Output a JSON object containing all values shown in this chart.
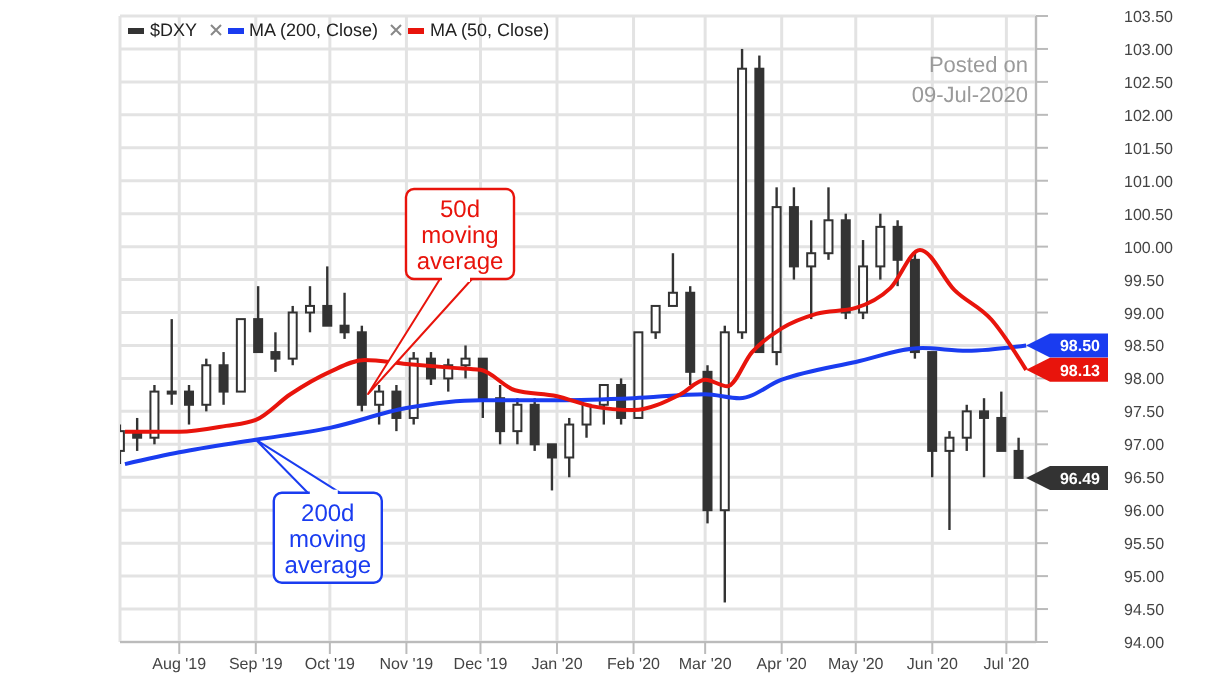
{
  "chart_data": {
    "type": "candlestick",
    "legend": "top left",
    "grid": true,
    "marker": "none",
    "line_style": "solid",
    "xlim": [
      "2019-07-08",
      "2020-07-13"
    ],
    "xticks": [
      {
        "value": "2019-08-01",
        "label": "Aug '19"
      },
      {
        "value": "2019-09-01",
        "label": "Sep '19"
      },
      {
        "value": "2019-10-01",
        "label": "Oct '19"
      },
      {
        "value": "2019-11-01",
        "label": "Nov '19"
      },
      {
        "value": "2019-12-01",
        "label": "Dec '19"
      },
      {
        "value": "2020-01-01",
        "label": "Jan '20"
      },
      {
        "value": "2020-02-01",
        "label": "Feb '20"
      },
      {
        "value": "2020-03-01",
        "label": "Mar '20"
      },
      {
        "value": "2020-04-01",
        "label": "Apr '20"
      },
      {
        "value": "2020-05-01",
        "label": "May '20"
      },
      {
        "value": "2020-06-01",
        "label": "Jun '20"
      },
      {
        "value": "2020-07-01",
        "label": "Jul '20"
      }
    ],
    "ylim": [
      94,
      103.5
    ],
    "yticks": [
      {
        "value": 94,
        "label": "94.00"
      },
      {
        "value": 94.5,
        "label": "94.50"
      },
      {
        "value": 95,
        "label": "95.00"
      },
      {
        "value": 95.5,
        "label": "95.50"
      },
      {
        "value": 96,
        "label": "96.00"
      },
      {
        "value": 96.5,
        "label": "96.50"
      },
      {
        "value": 97,
        "label": "97.00"
      },
      {
        "value": 97.5,
        "label": "97.50"
      },
      {
        "value": 98,
        "label": "98.00"
      },
      {
        "value": 98.5,
        "label": "98.50"
      },
      {
        "value": 99,
        "label": "99.00"
      },
      {
        "value": 99.5,
        "label": "99.50"
      },
      {
        "value": 100,
        "label": "100.00"
      },
      {
        "value": 100.5,
        "label": "100.50"
      },
      {
        "value": 101,
        "label": "101.00"
      },
      {
        "value": 101.5,
        "label": "101.50"
      },
      {
        "value": 102,
        "label": "102.00"
      },
      {
        "value": 102.5,
        "label": "102.50"
      },
      {
        "value": 103,
        "label": "103.00"
      },
      {
        "value": 103.5,
        "label": "103.50"
      }
    ],
    "series": [
      {
        "name": "$DXY",
        "type": "candlestick",
        "color": "#333333",
        "x": [
          "2019-07-08",
          "2019-07-15",
          "2019-07-22",
          "2019-07-29",
          "2019-08-05",
          "2019-08-12",
          "2019-08-19",
          "2019-08-26",
          "2019-09-02",
          "2019-09-09",
          "2019-09-16",
          "2019-09-23",
          "2019-09-30",
          "2019-10-07",
          "2019-10-14",
          "2019-10-21",
          "2019-10-28",
          "2019-11-04",
          "2019-11-11",
          "2019-11-18",
          "2019-11-25",
          "2019-12-02",
          "2019-12-09",
          "2019-12-16",
          "2019-12-23",
          "2019-12-30",
          "2020-01-06",
          "2020-01-13",
          "2020-01-20",
          "2020-01-27",
          "2020-02-03",
          "2020-02-10",
          "2020-02-17",
          "2020-02-24",
          "2020-03-02",
          "2020-03-09",
          "2020-03-16",
          "2020-03-23",
          "2020-03-30",
          "2020-04-06",
          "2020-04-13",
          "2020-04-20",
          "2020-04-27",
          "2020-05-04",
          "2020-05-11",
          "2020-05-18",
          "2020-05-25",
          "2020-06-01",
          "2020-06-08",
          "2020-06-15",
          "2020-06-22",
          "2020-06-29",
          "2020-07-06"
        ],
        "ohlc": [
          [
            96.9,
            97.3,
            96.7,
            97.2
          ],
          [
            97.2,
            97.4,
            96.9,
            97.1
          ],
          [
            97.1,
            97.9,
            97.0,
            97.8
          ],
          [
            97.8,
            98.9,
            97.6,
            97.8
          ],
          [
            97.8,
            97.9,
            97.3,
            97.6
          ],
          [
            97.6,
            98.3,
            97.5,
            98.2
          ],
          [
            98.2,
            98.4,
            97.6,
            97.8
          ],
          [
            97.8,
            98.9,
            97.8,
            98.9
          ],
          [
            98.9,
            99.4,
            98.4,
            98.4
          ],
          [
            98.4,
            98.7,
            98.1,
            98.3
          ],
          [
            98.3,
            99.1,
            98.2,
            99.0
          ],
          [
            99.0,
            99.4,
            98.7,
            99.1
          ],
          [
            99.1,
            99.7,
            98.8,
            98.8
          ],
          [
            98.8,
            99.3,
            98.6,
            98.7
          ],
          [
            98.7,
            98.8,
            97.5,
            97.6
          ],
          [
            97.6,
            97.9,
            97.3,
            97.8
          ],
          [
            97.8,
            97.9,
            97.2,
            97.4
          ],
          [
            97.4,
            98.4,
            97.3,
            98.3
          ],
          [
            98.3,
            98.4,
            97.9,
            98.0
          ],
          [
            98.0,
            98.3,
            97.8,
            98.2
          ],
          [
            98.2,
            98.5,
            98.0,
            98.3
          ],
          [
            98.3,
            98.3,
            97.4,
            97.7
          ],
          [
            97.7,
            97.9,
            97.0,
            97.2
          ],
          [
            97.2,
            97.7,
            97.0,
            97.6
          ],
          [
            97.6,
            97.7,
            96.9,
            97.0
          ],
          [
            97.0,
            97.0,
            96.3,
            96.8
          ],
          [
            96.8,
            97.4,
            96.5,
            97.3
          ],
          [
            97.3,
            97.6,
            97.1,
            97.6
          ],
          [
            97.6,
            97.9,
            97.3,
            97.9
          ],
          [
            97.9,
            98.0,
            97.3,
            97.4
          ],
          [
            97.4,
            98.7,
            97.4,
            98.7
          ],
          [
            98.7,
            99.1,
            98.6,
            99.1
          ],
          [
            99.1,
            99.9,
            99.1,
            99.3
          ],
          [
            99.3,
            99.4,
            97.9,
            98.1
          ],
          [
            98.1,
            98.2,
            95.8,
            96.0
          ],
          [
            96.0,
            98.8,
            94.6,
            98.7
          ],
          [
            98.7,
            103.0,
            98.6,
            102.7
          ],
          [
            102.7,
            102.9,
            98.4,
            98.4
          ],
          [
            98.4,
            100.9,
            98.2,
            100.6
          ],
          [
            100.6,
            100.9,
            99.5,
            99.7
          ],
          [
            99.7,
            100.4,
            98.9,
            99.9
          ],
          [
            99.9,
            100.9,
            99.8,
            100.4
          ],
          [
            100.4,
            100.5,
            98.9,
            99.0
          ],
          [
            99.0,
            100.1,
            98.9,
            99.7
          ],
          [
            99.7,
            100.5,
            99.5,
            100.3
          ],
          [
            100.3,
            100.4,
            99.4,
            99.8
          ],
          [
            99.8,
            99.9,
            98.3,
            98.4
          ],
          [
            98.4,
            98.4,
            96.5,
            96.9
          ],
          [
            96.9,
            97.2,
            95.7,
            97.1
          ],
          [
            97.1,
            97.6,
            96.9,
            97.5
          ],
          [
            97.5,
            97.7,
            96.5,
            97.4
          ],
          [
            97.4,
            97.8,
            96.9,
            96.9
          ],
          [
            96.9,
            97.1,
            96.49,
            96.49
          ]
        ]
      },
      {
        "name": "MA (200, Close)",
        "type": "line",
        "color": "#1a3cf0",
        "x": [
          "2019-07-10",
          "2019-08-01",
          "2019-09-01",
          "2019-10-01",
          "2019-11-01",
          "2019-12-01",
          "2020-01-01",
          "2020-02-01",
          "2020-03-01",
          "2020-03-15",
          "2020-04-01",
          "2020-05-01",
          "2020-05-28",
          "2020-06-15",
          "2020-07-09"
        ],
        "values": [
          96.7,
          96.88,
          97.07,
          97.25,
          97.55,
          97.67,
          97.67,
          97.7,
          97.76,
          97.7,
          97.98,
          98.25,
          98.46,
          98.42,
          98.5
        ]
      },
      {
        "name": "MA (50, Close)",
        "type": "line",
        "color": "#e8140c",
        "x": [
          "2019-07-10",
          "2019-08-01",
          "2019-08-20",
          "2019-09-01",
          "2019-09-15",
          "2019-10-01",
          "2019-10-15",
          "2019-11-01",
          "2019-11-20",
          "2019-12-01",
          "2019-12-15",
          "2020-01-01",
          "2020-01-15",
          "2020-02-01",
          "2020-02-20",
          "2020-03-01",
          "2020-03-10",
          "2020-03-20",
          "2020-04-01",
          "2020-04-15",
          "2020-05-01",
          "2020-05-15",
          "2020-05-27",
          "2020-06-10",
          "2020-06-25",
          "2020-07-09"
        ],
        "values": [
          97.19,
          97.19,
          97.28,
          97.37,
          97.76,
          98.1,
          98.28,
          98.22,
          98.16,
          98.13,
          97.82,
          97.73,
          97.58,
          97.52,
          97.76,
          97.98,
          97.88,
          98.4,
          98.76,
          98.98,
          99.07,
          99.37,
          99.95,
          99.34,
          98.89,
          98.13
        ]
      }
    ],
    "annotations": [
      "50d moving average",
      {
        "text": "200d moving average",
        "x": "2019-09-01",
        "y": 97.07
      },
      {
        "text": "98.50",
        "x": "2020-07-09",
        "y": 98.5
      },
      {
        "text": "98.13",
        "x": "2020-07-09",
        "y": 98.13
      },
      {
        "text": "96.49",
        "x": "2020-07-09",
        "y": 96.49
      },
      "Posted on",
      "09-Jul-2020"
    ]
  }
}
